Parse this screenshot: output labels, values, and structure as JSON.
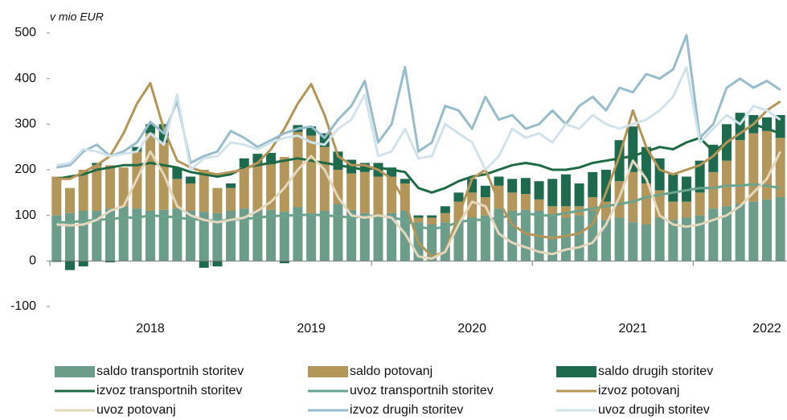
{
  "chart_data": {
    "type": "bar_line",
    "unit_label": "v mio EUR",
    "categories": [
      null,
      null,
      null,
      null,
      null,
      null,
      null,
      "2018",
      null,
      null,
      null,
      null,
      null,
      null,
      null,
      null,
      null,
      null,
      null,
      "2019",
      null,
      null,
      null,
      null,
      null,
      null,
      null,
      null,
      null,
      null,
      null,
      "2020",
      null,
      null,
      null,
      null,
      null,
      null,
      null,
      null,
      null,
      null,
      null,
      "2021",
      null,
      null,
      null,
      null,
      null,
      null,
      null,
      null,
      null,
      "2022",
      null
    ],
    "ylim": [
      -100,
      500
    ],
    "yticks": [
      -100,
      0,
      100,
      200,
      300,
      400,
      500
    ],
    "grid": false,
    "series": [
      {
        "name": "saldo transportnih storitev",
        "kind": "bar",
        "color": "#6b9d8a",
        "values": [
          100,
          105,
          110,
          110,
          115,
          120,
          115,
          110,
          112,
          115,
          110,
          108,
          105,
          110,
          115,
          110,
          112,
          108,
          118,
          100,
          110,
          125,
          112,
          105,
          100,
          105,
          110,
          85,
          80,
          85,
          90,
          95,
          100,
          115,
          110,
          112,
          110,
          100,
          95,
          100,
          110,
          90,
          95,
          85,
          80,
          95,
          90,
          95,
          100,
          115,
          120,
          125,
          130,
          135,
          140
        ]
      },
      {
        "name": "saldo potovanj",
        "kind": "bar",
        "color": "#b3965a",
        "values": [
          85,
          55,
          90,
          100,
          95,
          85,
          125,
          170,
          148,
          65,
          60,
          92,
          55,
          50,
          90,
          105,
          100,
          120,
          165,
          175,
          140,
          75,
          80,
          90,
          85,
          80,
          60,
          10,
          15,
          20,
          40,
          55,
          40,
          50,
          40,
          35,
          25,
          20,
          25,
          20,
          30,
          40,
          80,
          110,
          90,
          60,
          40,
          35,
          50,
          80,
          100,
          140,
          150,
          150,
          130
        ]
      },
      {
        "name": "saldo drugih storitev",
        "kind": "bar",
        "color": "#1e6a4e",
        "values": [
          -2,
          -20,
          -12,
          5,
          -3,
          0,
          10,
          20,
          40,
          25,
          15,
          -15,
          -12,
          10,
          20,
          20,
          25,
          -5,
          15,
          20,
          30,
          40,
          30,
          20,
          30,
          20,
          10,
          5,
          5,
          15,
          20,
          30,
          25,
          20,
          30,
          35,
          40,
          60,
          70,
          50,
          55,
          70,
          90,
          100,
          80,
          70,
          60,
          55,
          70,
          60,
          80,
          60,
          40,
          30,
          50
        ]
      },
      {
        "name": "izvoz transportnih storitev",
        "kind": "line",
        "color": "#1d6a45",
        "values": [
          180,
          185,
          190,
          200,
          205,
          210,
          210,
          215,
          210,
          205,
          195,
          190,
          185,
          190,
          205,
          210,
          215,
          220,
          225,
          220,
          215,
          210,
          205,
          200,
          205,
          200,
          195,
          160,
          150,
          160,
          175,
          185,
          190,
          200,
          210,
          215,
          210,
          200,
          200,
          205,
          215,
          220,
          225,
          230,
          240,
          250,
          245,
          260,
          270,
          240,
          260,
          280,
          300,
          290,
          280
        ]
      },
      {
        "name": "uvoz transportnih storitev",
        "kind": "line",
        "color": "#6aa48e",
        "values": [
          85,
          85,
          88,
          90,
          92,
          95,
          95,
          100,
          98,
          95,
          92,
          90,
          88,
          90,
          92,
          95,
          98,
          100,
          100,
          102,
          100,
          98,
          95,
          98,
          100,
          95,
          90,
          75,
          70,
          75,
          85,
          90,
          90,
          95,
          100,
          105,
          100,
          100,
          105,
          110,
          115,
          120,
          125,
          130,
          140,
          145,
          150,
          155,
          160,
          160,
          165,
          165,
          168,
          165,
          160
        ]
      },
      {
        "name": "izvoz potovanj",
        "kind": "line",
        "color": "#b59556",
        "values": [
          180,
          180,
          195,
          210,
          230,
          280,
          345,
          390,
          290,
          220,
          205,
          195,
          190,
          195,
          200,
          215,
          245,
          290,
          345,
          388,
          320,
          230,
          210,
          210,
          200,
          180,
          130,
          40,
          10,
          20,
          100,
          180,
          200,
          130,
          80,
          60,
          55,
          50,
          55,
          60,
          80,
          150,
          230,
          330,
          250,
          200,
          190,
          200,
          210,
          230,
          260,
          280,
          300,
          330,
          350
        ]
      },
      {
        "name": "uvoz potovanj",
        "kind": "line",
        "color": "#e5d7bc",
        "values": [
          80,
          78,
          80,
          90,
          110,
          120,
          180,
          240,
          190,
          120,
          100,
          90,
          85,
          90,
          95,
          110,
          130,
          160,
          200,
          230,
          200,
          140,
          100,
          95,
          100,
          95,
          60,
          10,
          5,
          20,
          80,
          130,
          120,
          60,
          40,
          30,
          20,
          15,
          25,
          30,
          40,
          80,
          140,
          220,
          180,
          100,
          80,
          75,
          80,
          90,
          100,
          120,
          150,
          180,
          240
        ]
      },
      {
        "name": "izvoz drugih storitev",
        "kind": "line",
        "color": "#97bccb",
        "values": [
          205,
          210,
          240,
          255,
          230,
          240,
          260,
          305,
          280,
          350,
          215,
          230,
          240,
          285,
          270,
          250,
          265,
          280,
          290,
          295,
          270,
          310,
          340,
          395,
          260,
          300,
          425,
          240,
          260,
          340,
          330,
          290,
          360,
          310,
          320,
          290,
          300,
          330,
          300,
          340,
          360,
          330,
          380,
          370,
          410,
          400,
          420,
          495,
          270,
          300,
          380,
          400,
          380,
          395,
          375
        ]
      },
      {
        "name": "uvoz drugih storitev",
        "kind": "line",
        "color": "#d0e3eb",
        "values": [
          210,
          215,
          245,
          240,
          230,
          235,
          240,
          280,
          255,
          365,
          200,
          225,
          230,
          260,
          255,
          245,
          260,
          270,
          275,
          260,
          255,
          290,
          310,
          365,
          230,
          240,
          290,
          225,
          230,
          300,
          280,
          260,
          200,
          230,
          290,
          270,
          280,
          260,
          300,
          290,
          320,
          300,
          290,
          300,
          310,
          330,
          360,
          425,
          260,
          290,
          320,
          300,
          340,
          330,
          310
        ]
      }
    ]
  }
}
